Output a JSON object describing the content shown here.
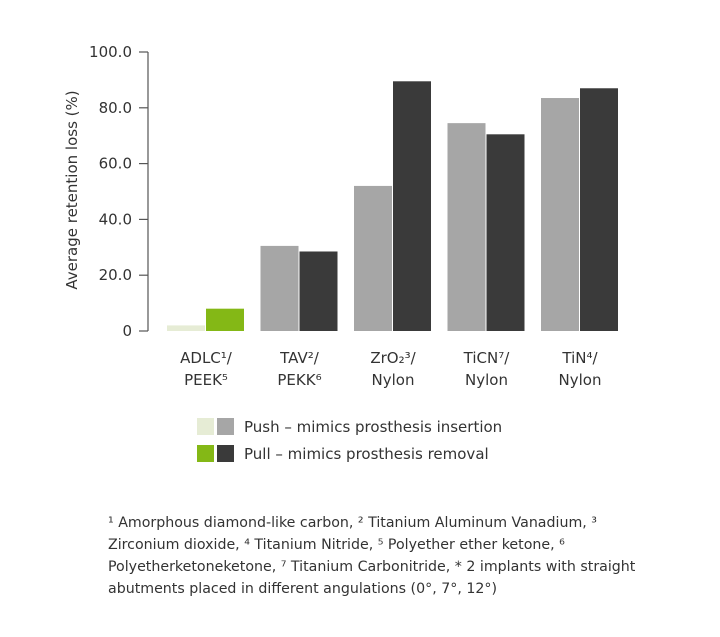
{
  "chart_data": {
    "type": "bar",
    "ylabel": "Average retention loss (%)",
    "ylim": [
      0,
      100
    ],
    "yticks": [
      "0",
      "20.0",
      "40.0",
      "60.0",
      "80.0",
      "100.0"
    ],
    "ytick_values": [
      0,
      20,
      40,
      60,
      80,
      100
    ],
    "grid": false,
    "categories": [
      {
        "line1": "ADLC¹/",
        "line2": "PEEK⁵"
      },
      {
        "line1": "TAV²/",
        "line2": "PEKK⁶"
      },
      {
        "line1": "ZrO₂³/",
        "line2": "Nylon"
      },
      {
        "line1": "TiCN⁷/",
        "line2": "Nylon"
      },
      {
        "line1": "TiN⁴/",
        "line2": "Nylon"
      }
    ],
    "series": [
      {
        "name": "Push – mimics prosthesis insertion",
        "values": [
          2,
          30.5,
          52,
          74.5,
          83.5
        ],
        "colors": [
          "#e6ecd5",
          "#a6a6a6",
          "#a6a6a6",
          "#a6a6a6",
          "#a6a6a6"
        ]
      },
      {
        "name": "Pull – mimics prosthesis removal",
        "values": [
          8,
          28.5,
          89.5,
          70.5,
          87
        ],
        "colors": [
          "#84b816",
          "#3a3a3a",
          "#3a3a3a",
          "#3a3a3a",
          "#3a3a3a"
        ]
      }
    ],
    "legend": [
      {
        "label": "Push – mimics prosthesis insertion",
        "swatches": [
          "#e6ecd5",
          "#a6a6a6"
        ]
      },
      {
        "label": "Pull – mimics prosthesis removal",
        "swatches": [
          "#84b816",
          "#3a3a3a"
        ]
      }
    ],
    "legend_placement": "bottom"
  },
  "footnote": "¹ Amorphous diamond-like carbon, ² Titanium Aluminum Vanadium, ³ Zirconium dioxide, ⁴ Titanium Nitride, ⁵ Polyether ether ketone, ⁶ Polyetherketoneketone, ⁷ Titanium Carbonitride, * 2 implants with straight abutments placed in different angulations (0°, 7°, 12°)"
}
